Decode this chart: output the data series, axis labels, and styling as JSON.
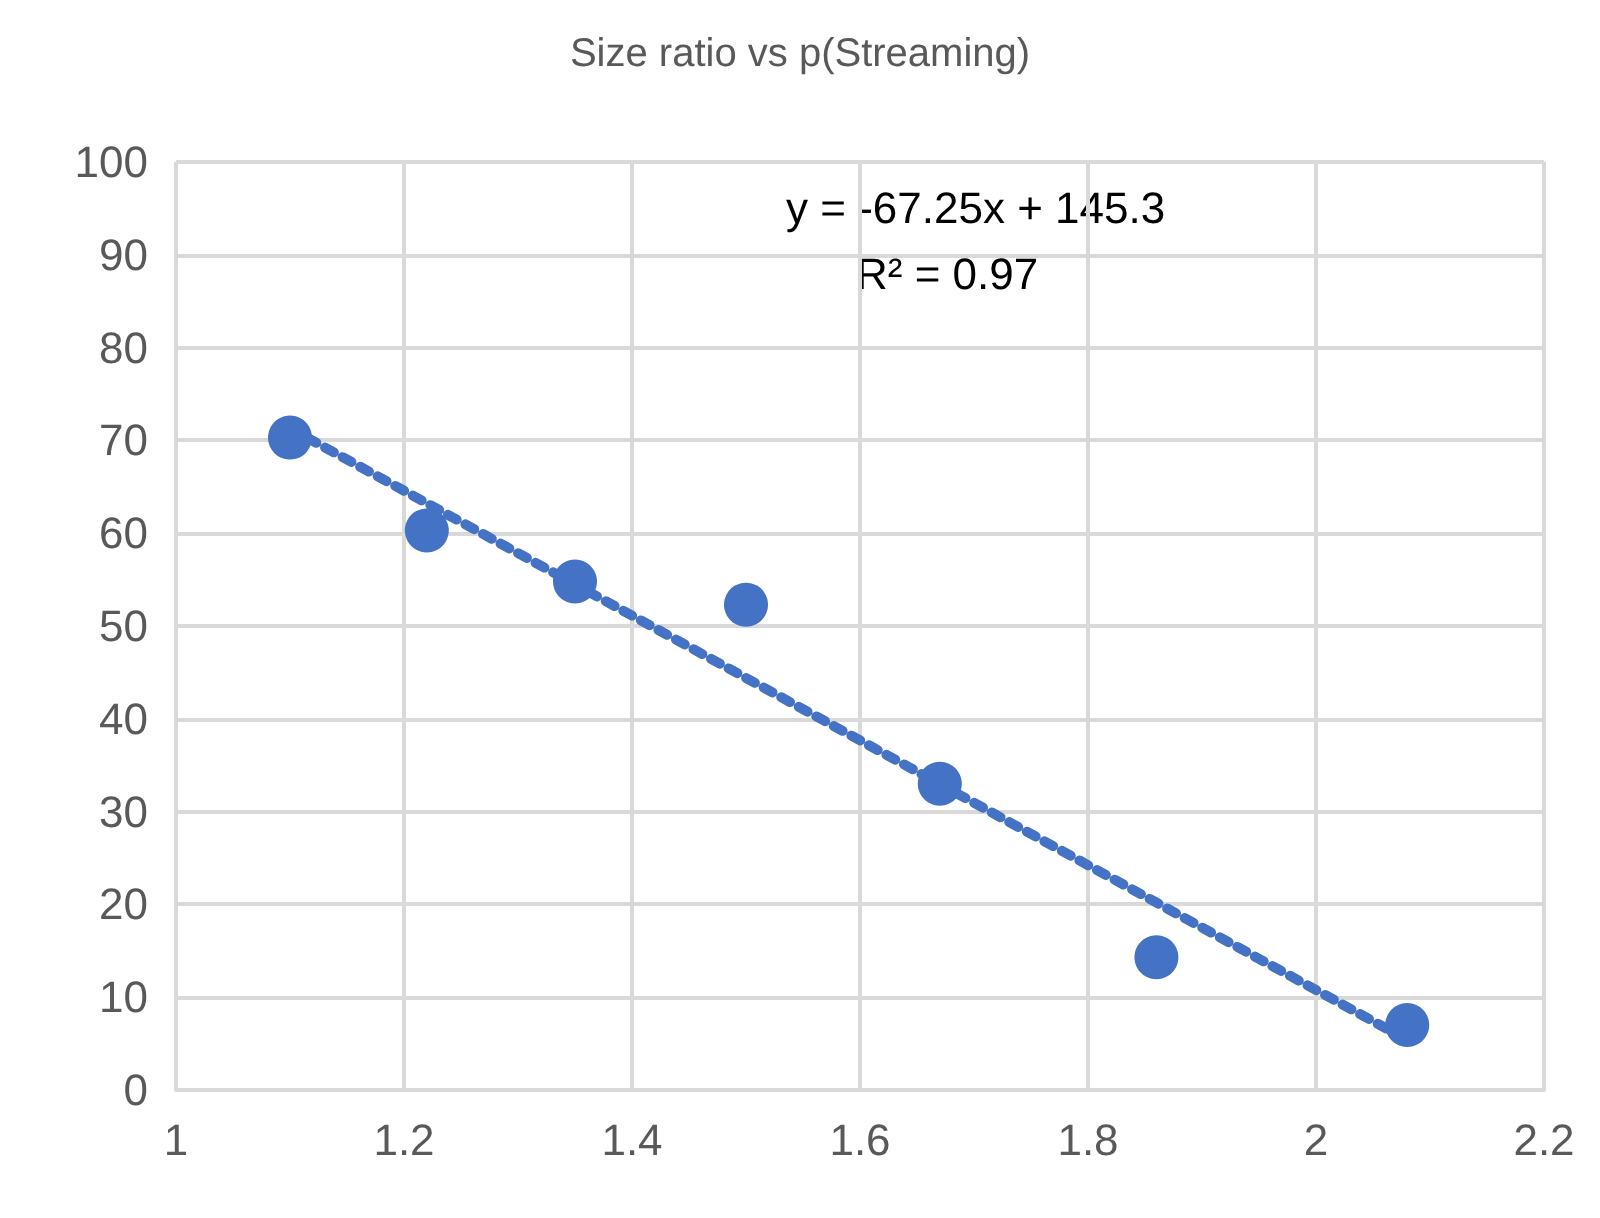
{
  "chart_data": {
    "type": "scatter",
    "title": "Size ratio vs p(Streaming)",
    "series": [
      {
        "color": "#4472c4",
        "x": [
          1.1,
          1.22,
          1.35,
          1.5,
          1.67,
          1.86,
          2.08
        ],
        "values": [
          70.3,
          60.3,
          54.8,
          52.3,
          33,
          14.3,
          7
        ],
        "marker": "circle"
      },
      {
        "type": "line",
        "color": "#4472c4",
        "x": [
          1.1,
          2.08
        ],
        "values": [
          71.3,
          5.4
        ],
        "line_style": "dotted",
        "marker": "none"
      }
    ],
    "annotations": [
      "y = -67.25x + 145.3",
      "R² = 0.97"
    ],
    "xlim": [
      1,
      2.2
    ],
    "xticks": [
      1,
      1.2,
      1.4,
      1.6,
      1.8,
      2,
      2.2
    ],
    "ylim": [
      0,
      100
    ],
    "yticks": [
      0,
      10,
      20,
      30,
      40,
      50,
      60,
      70,
      80,
      90,
      100
    ],
    "grid": true
  }
}
